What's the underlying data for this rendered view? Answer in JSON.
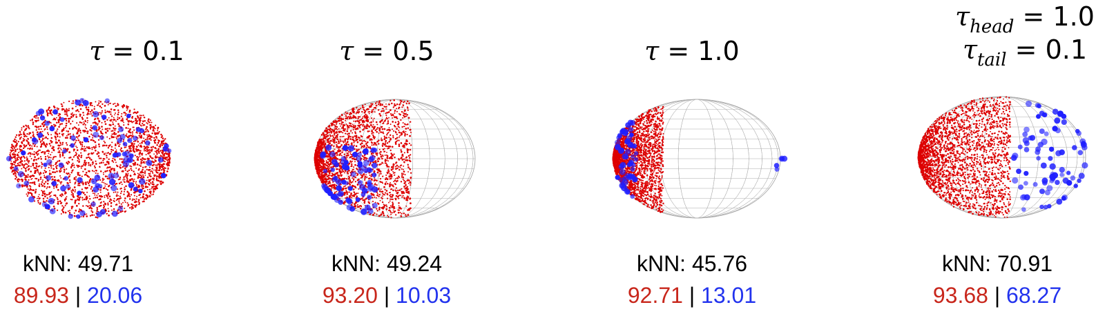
{
  "chart_data": [
    {
      "type": "scatter",
      "title": {
        "symbol": "τ",
        "eq": "= 0.1"
      },
      "knn_label": "kNN: 49.71",
      "head_score": "89.93",
      "separator": "|",
      "tail_score": "20.06",
      "series": [
        {
          "color": "#dd0000",
          "distribution": "uniform over visible hemisphere",
          "visible_fraction": 1.0
        },
        {
          "color": "#1f1fff",
          "distribution": "scattered",
          "count": 90
        }
      ],
      "grid": false
    },
    {
      "type": "scatter",
      "title": {
        "symbol": "τ",
        "eq": "= 0.5"
      },
      "knn_label": "kNN: 49.24",
      "head_score": "93.20",
      "separator": "|",
      "tail_score": "10.03",
      "series": [
        {
          "color": "#dd0000",
          "distribution": "dense on left half",
          "visible_fraction": 0.6
        },
        {
          "color": "#1f1fff",
          "distribution": "clustered lower-left",
          "count": 80
        }
      ],
      "grid": true
    },
    {
      "type": "scatter",
      "title": {
        "symbol": "τ",
        "eq": "= 1.0"
      },
      "knn_label": "kNN: 45.76",
      "head_score": "92.71",
      "separator": "|",
      "tail_score": "13.01",
      "series": [
        {
          "color": "#dd0000",
          "distribution": "crescent on left edge",
          "visible_fraction": 0.3
        },
        {
          "color": "#1f1fff",
          "distribution": "left edge",
          "count": 60
        }
      ],
      "grid": true
    },
    {
      "type": "scatter",
      "title": {
        "line1_symbol": "τ",
        "line1_sub": "head",
        "line1_eq": "= 1.0",
        "line2_symbol": "τ",
        "line2_sub": "tail",
        "line2_eq": "= 0.1"
      },
      "knn_label": "kNN: 70.91",
      "head_score": "93.68",
      "separator": "|",
      "tail_score": "68.27",
      "series": [
        {
          "color": "#dd0000",
          "distribution": "dense on left half",
          "visible_fraction": 0.55
        },
        {
          "color": "#1f1fff",
          "distribution": "spread on right half",
          "count": 85
        }
      ],
      "grid": true
    }
  ]
}
